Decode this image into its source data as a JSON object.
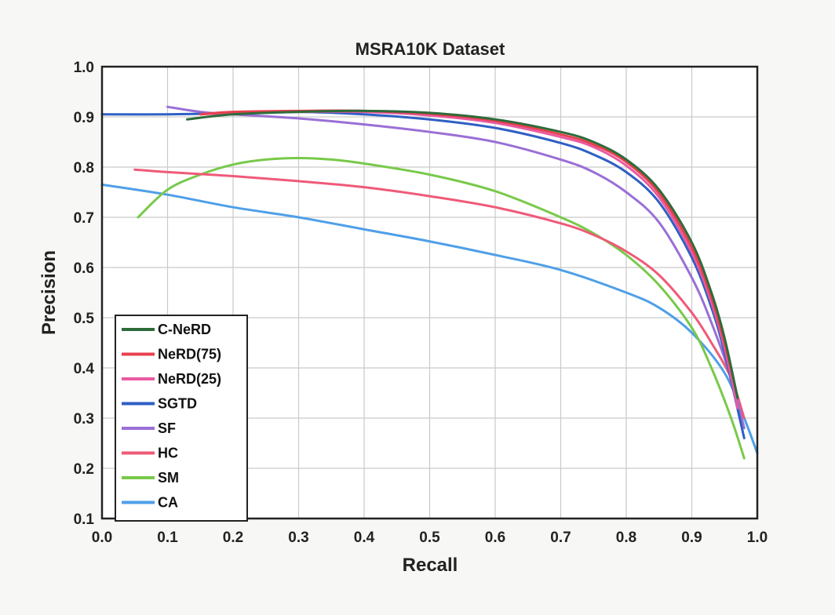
{
  "chart_data": {
    "type": "line",
    "title": "MSRA10K Dataset",
    "xlabel": "Recall",
    "ylabel": "Precision",
    "xlim": [
      0.0,
      1.0
    ],
    "ylim": [
      0.1,
      1.0
    ],
    "x_ticks": [
      "0.0",
      "0.1",
      "0.2",
      "0.3",
      "0.4",
      "0.5",
      "0.6",
      "0.7",
      "0.8",
      "0.9",
      "1.0"
    ],
    "y_ticks": [
      "0.1",
      "0.2",
      "0.3",
      "0.4",
      "0.5",
      "0.6",
      "0.7",
      "0.8",
      "0.9",
      "1.0"
    ],
    "grid": true,
    "legend_position": "bottom-left",
    "series": [
      {
        "name": "C-NeRD",
        "color": "#2e6b3a",
        "points": [
          [
            0.13,
            0.895
          ],
          [
            0.2,
            0.905
          ],
          [
            0.3,
            0.91
          ],
          [
            0.4,
            0.912
          ],
          [
            0.5,
            0.908
          ],
          [
            0.6,
            0.895
          ],
          [
            0.7,
            0.87
          ],
          [
            0.75,
            0.85
          ],
          [
            0.8,
            0.815
          ],
          [
            0.85,
            0.755
          ],
          [
            0.9,
            0.65
          ],
          [
            0.93,
            0.55
          ],
          [
            0.95,
            0.46
          ],
          [
            0.97,
            0.34
          ]
        ]
      },
      {
        "name": "NeRD(75)",
        "color": "#e8404f",
        "points": [
          [
            0.15,
            0.905
          ],
          [
            0.2,
            0.91
          ],
          [
            0.3,
            0.912
          ],
          [
            0.4,
            0.912
          ],
          [
            0.5,
            0.906
          ],
          [
            0.6,
            0.892
          ],
          [
            0.7,
            0.865
          ],
          [
            0.75,
            0.845
          ],
          [
            0.8,
            0.81
          ],
          [
            0.85,
            0.748
          ],
          [
            0.9,
            0.64
          ],
          [
            0.93,
            0.54
          ],
          [
            0.95,
            0.45
          ],
          [
            0.97,
            0.34
          ]
        ]
      },
      {
        "name": "NeRD(25)",
        "color": "#e85aa0",
        "points": [
          [
            0.15,
            0.905
          ],
          [
            0.2,
            0.908
          ],
          [
            0.3,
            0.91
          ],
          [
            0.4,
            0.91
          ],
          [
            0.5,
            0.903
          ],
          [
            0.6,
            0.888
          ],
          [
            0.7,
            0.86
          ],
          [
            0.75,
            0.84
          ],
          [
            0.8,
            0.803
          ],
          [
            0.85,
            0.74
          ],
          [
            0.9,
            0.63
          ],
          [
            0.93,
            0.53
          ],
          [
            0.95,
            0.44
          ],
          [
            0.97,
            0.32
          ]
        ]
      },
      {
        "name": "SGTD",
        "color": "#2f5fc4",
        "points": [
          [
            0.0,
            0.905
          ],
          [
            0.1,
            0.905
          ],
          [
            0.2,
            0.907
          ],
          [
            0.3,
            0.91
          ],
          [
            0.4,
            0.905
          ],
          [
            0.5,
            0.895
          ],
          [
            0.6,
            0.878
          ],
          [
            0.7,
            0.848
          ],
          [
            0.75,
            0.825
          ],
          [
            0.8,
            0.79
          ],
          [
            0.85,
            0.73
          ],
          [
            0.9,
            0.62
          ],
          [
            0.93,
            0.52
          ],
          [
            0.95,
            0.43
          ],
          [
            0.98,
            0.26
          ]
        ]
      },
      {
        "name": "SF",
        "color": "#9a6fd6",
        "points": [
          [
            0.1,
            0.92
          ],
          [
            0.15,
            0.91
          ],
          [
            0.2,
            0.905
          ],
          [
            0.3,
            0.897
          ],
          [
            0.4,
            0.885
          ],
          [
            0.5,
            0.87
          ],
          [
            0.6,
            0.85
          ],
          [
            0.7,
            0.815
          ],
          [
            0.75,
            0.79
          ],
          [
            0.8,
            0.75
          ],
          [
            0.85,
            0.69
          ],
          [
            0.9,
            0.58
          ],
          [
            0.93,
            0.49
          ],
          [
            0.96,
            0.38
          ],
          [
            0.98,
            0.28
          ]
        ]
      },
      {
        "name": "HC",
        "color": "#ef5a78",
        "points": [
          [
            0.05,
            0.795
          ],
          [
            0.1,
            0.79
          ],
          [
            0.2,
            0.782
          ],
          [
            0.3,
            0.772
          ],
          [
            0.4,
            0.76
          ],
          [
            0.5,
            0.742
          ],
          [
            0.6,
            0.72
          ],
          [
            0.7,
            0.688
          ],
          [
            0.75,
            0.665
          ],
          [
            0.8,
            0.632
          ],
          [
            0.85,
            0.585
          ],
          [
            0.9,
            0.51
          ],
          [
            0.93,
            0.45
          ],
          [
            0.96,
            0.38
          ],
          [
            0.98,
            0.3
          ]
        ]
      },
      {
        "name": "SM",
        "color": "#78c94a",
        "points": [
          [
            0.055,
            0.7
          ],
          [
            0.1,
            0.755
          ],
          [
            0.15,
            0.785
          ],
          [
            0.2,
            0.805
          ],
          [
            0.25,
            0.815
          ],
          [
            0.3,
            0.818
          ],
          [
            0.35,
            0.815
          ],
          [
            0.4,
            0.807
          ],
          [
            0.5,
            0.785
          ],
          [
            0.6,
            0.752
          ],
          [
            0.7,
            0.7
          ],
          [
            0.75,
            0.668
          ],
          [
            0.8,
            0.625
          ],
          [
            0.85,
            0.565
          ],
          [
            0.9,
            0.48
          ],
          [
            0.93,
            0.4
          ],
          [
            0.96,
            0.3
          ],
          [
            0.98,
            0.22
          ]
        ]
      },
      {
        "name": "CA",
        "color": "#4f9fe8",
        "points": [
          [
            0.0,
            0.765
          ],
          [
            0.1,
            0.745
          ],
          [
            0.2,
            0.72
          ],
          [
            0.3,
            0.7
          ],
          [
            0.4,
            0.676
          ],
          [
            0.5,
            0.652
          ],
          [
            0.6,
            0.625
          ],
          [
            0.7,
            0.595
          ],
          [
            0.8,
            0.55
          ],
          [
            0.85,
            0.52
          ],
          [
            0.9,
            0.47
          ],
          [
            0.95,
            0.39
          ],
          [
            0.98,
            0.3
          ],
          [
            1.0,
            0.23
          ]
        ]
      }
    ]
  }
}
